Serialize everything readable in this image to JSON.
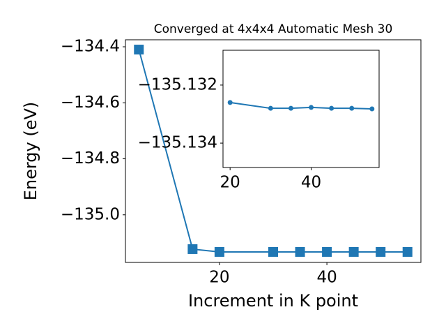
{
  "chart_data": [
    {
      "type": "line",
      "title": "Converged at 4x4x4 Automatic Mesh 30",
      "x_label": "Increment in K point",
      "y_label": "Energy (eV)",
      "x": [
        5,
        15,
        20,
        30,
        35,
        40,
        45,
        50,
        55
      ],
      "values": [
        -134.41,
        -135.1225,
        -135.1325,
        -135.1325,
        -135.1325,
        -135.1325,
        -135.1325,
        -135.1325,
        -135.1325
      ],
      "color": "#1f77b4",
      "marker": "square",
      "xlim": [
        2.5,
        57.5
      ],
      "xticks": [
        20,
        40
      ],
      "ylim": [
        -135.17,
        -134.375
      ],
      "yticks": [
        {
          "value": -135.0,
          "label": "−135.0"
        },
        {
          "value": -134.8,
          "label": "−134.8"
        },
        {
          "value": -134.6,
          "label": "−134.6"
        },
        {
          "value": -134.4,
          "label": "−134.4"
        }
      ]
    },
    {
      "type": "line",
      "x": [
        20,
        30,
        35,
        40,
        45,
        50,
        55
      ],
      "values": [
        -135.1326,
        -135.1328,
        -135.1328,
        -135.13277,
        -135.1328,
        -135.1328,
        -135.13282
      ],
      "color": "#1f77b4",
      "marker": "circle",
      "xlim": [
        18.25,
        56.75
      ],
      "xticks": [
        20,
        40
      ],
      "ylim": [
        -135.13484,
        -135.1308
      ],
      "yticks": [
        {
          "value": -135.134,
          "label": "−135.134"
        },
        {
          "value": -135.132,
          "label": "−135.132"
        }
      ]
    }
  ]
}
